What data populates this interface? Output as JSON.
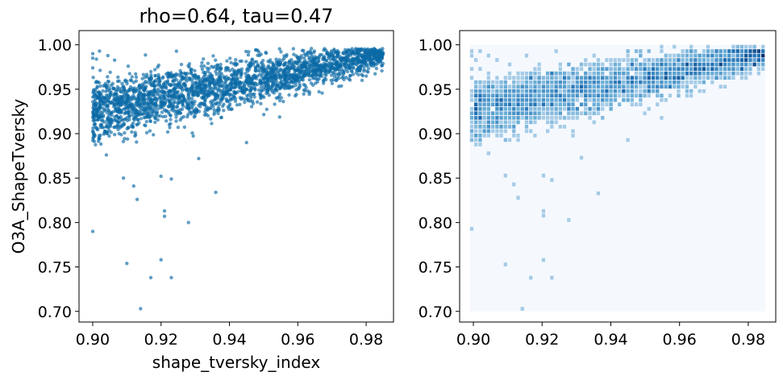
{
  "chart_data": [
    {
      "type": "scatter",
      "title": "rho=0.64, tau=0.47",
      "xlabel": "shape_tversky_index",
      "ylabel": "O3A_ShapeTversky",
      "xlim": [
        0.896,
        0.988
      ],
      "ylim": [
        0.688,
        1.016
      ],
      "xticks": [
        "0.90",
        "0.92",
        "0.94",
        "0.96",
        "0.98"
      ],
      "yticks": [
        "0.70",
        "0.75",
        "0.80",
        "0.85",
        "0.90",
        "0.95",
        "1.00"
      ],
      "grid": false,
      "point_color": "#0a6aa6",
      "point_opacity": 0.65,
      "trend": {
        "x_range": [
          0.9,
          0.985
        ],
        "y_at_x_start": 0.925,
        "y_at_x_end": 0.988,
        "spread": 0.018
      },
      "outliers": [
        {
          "x": 0.9,
          "y": 0.79
        },
        {
          "x": 0.91,
          "y": 0.754
        },
        {
          "x": 0.914,
          "y": 0.703
        },
        {
          "x": 0.917,
          "y": 0.738
        },
        {
          "x": 0.92,
          "y": 0.758
        },
        {
          "x": 0.923,
          "y": 0.738
        },
        {
          "x": 0.928,
          "y": 0.8
        },
        {
          "x": 0.921,
          "y": 0.807
        },
        {
          "x": 0.921,
          "y": 0.813
        },
        {
          "x": 0.913,
          "y": 0.826
        },
        {
          "x": 0.912,
          "y": 0.841
        },
        {
          "x": 0.909,
          "y": 0.85
        },
        {
          "x": 0.92,
          "y": 0.852
        },
        {
          "x": 0.923,
          "y": 0.849
        },
        {
          "x": 0.936,
          "y": 0.834
        },
        {
          "x": 0.931,
          "y": 0.872
        },
        {
          "x": 0.904,
          "y": 0.876
        },
        {
          "x": 0.945,
          "y": 0.89
        },
        {
          "x": 0.9,
          "y": 0.99
        },
        {
          "x": 0.902,
          "y": 0.993
        },
        {
          "x": 0.9,
          "y": 0.985
        }
      ]
    },
    {
      "type": "heatmap",
      "title": "",
      "xlabel": "",
      "ylabel": "",
      "xlim": [
        0.896,
        0.988
      ],
      "ylim": [
        0.688,
        1.016
      ],
      "xticks": [
        "0.90",
        "0.92",
        "0.94",
        "0.96",
        "0.98"
      ],
      "yticks": [
        "0.70",
        "0.75",
        "0.80",
        "0.85",
        "0.90",
        "0.95",
        "1.00"
      ],
      "colormap": "Blues",
      "background_color": "#f5f9fe",
      "extent": {
        "x": [
          0.899,
          0.985
        ],
        "y": [
          0.7,
          1.0
        ]
      }
    }
  ]
}
